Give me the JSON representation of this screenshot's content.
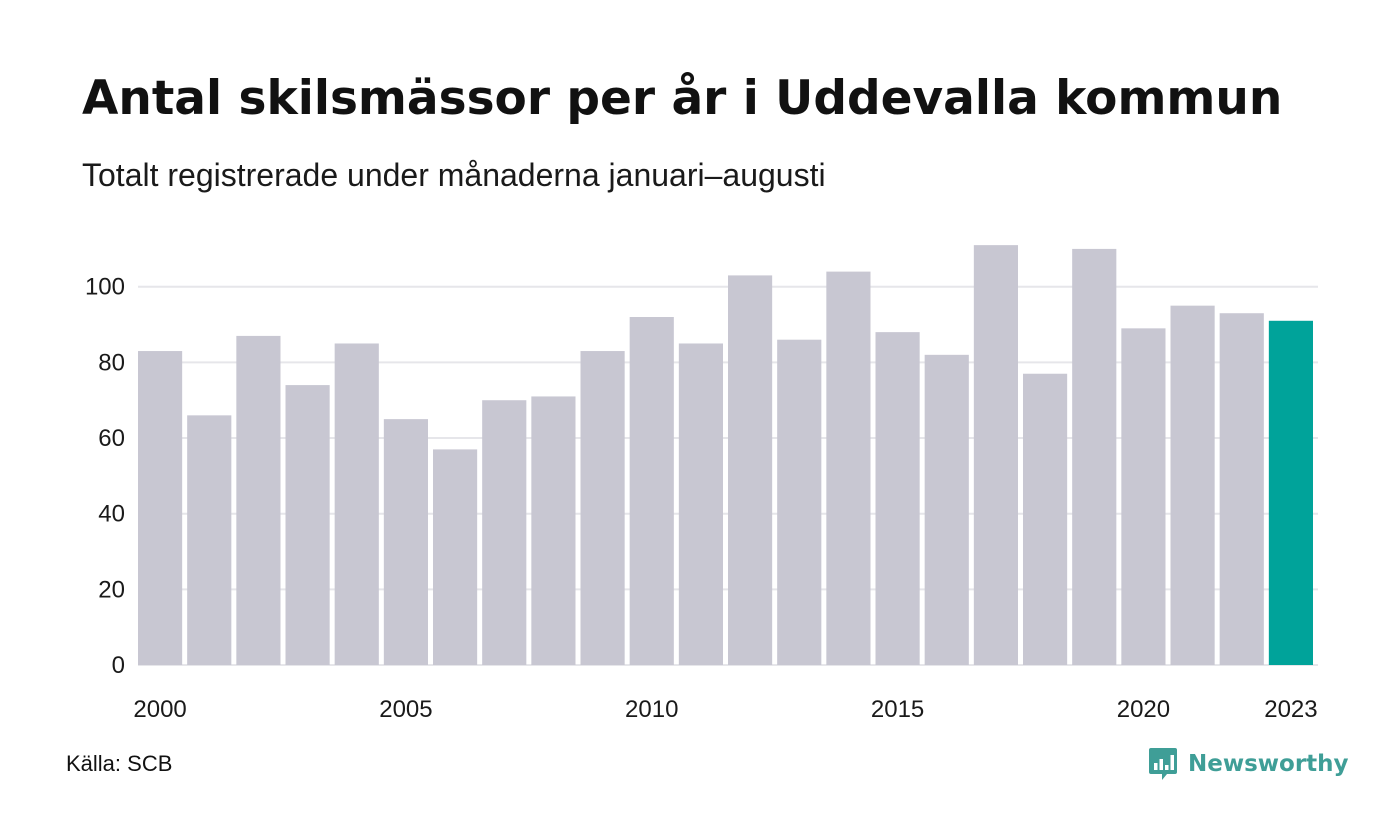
{
  "title": "Antal skilsmässor per år i Uddevalla kommun",
  "subtitle": "Totalt registrerade under månaderna januari–augusti",
  "source": "Källa: SCB",
  "brand": "Newsworthy",
  "colors": {
    "bar": "#c8c7d2",
    "highlight": "#00a39a",
    "grid": "#e6e6ea",
    "brand": "#3f9e97"
  },
  "chart_data": {
    "type": "bar",
    "title": "Antal skilsmässor per år i Uddevalla kommun",
    "subtitle": "Totalt registrerade under månaderna januari–augusti",
    "xlabel": "",
    "ylabel": "",
    "categories": [
      2000,
      2001,
      2002,
      2003,
      2004,
      2005,
      2006,
      2007,
      2008,
      2009,
      2010,
      2011,
      2012,
      2013,
      2014,
      2015,
      2016,
      2017,
      2018,
      2019,
      2020,
      2021,
      2022,
      2023
    ],
    "values": [
      83,
      66,
      87,
      74,
      85,
      65,
      57,
      70,
      71,
      83,
      92,
      85,
      103,
      86,
      104,
      88,
      82,
      111,
      77,
      110,
      89,
      95,
      93,
      91
    ],
    "highlight": 2023,
    "ylim": [
      0,
      115
    ],
    "yticks": [
      0,
      20,
      40,
      60,
      80,
      100
    ],
    "xticks": [
      2000,
      2005,
      2010,
      2015,
      2020,
      2023
    ],
    "grid": true,
    "legend": "none"
  }
}
